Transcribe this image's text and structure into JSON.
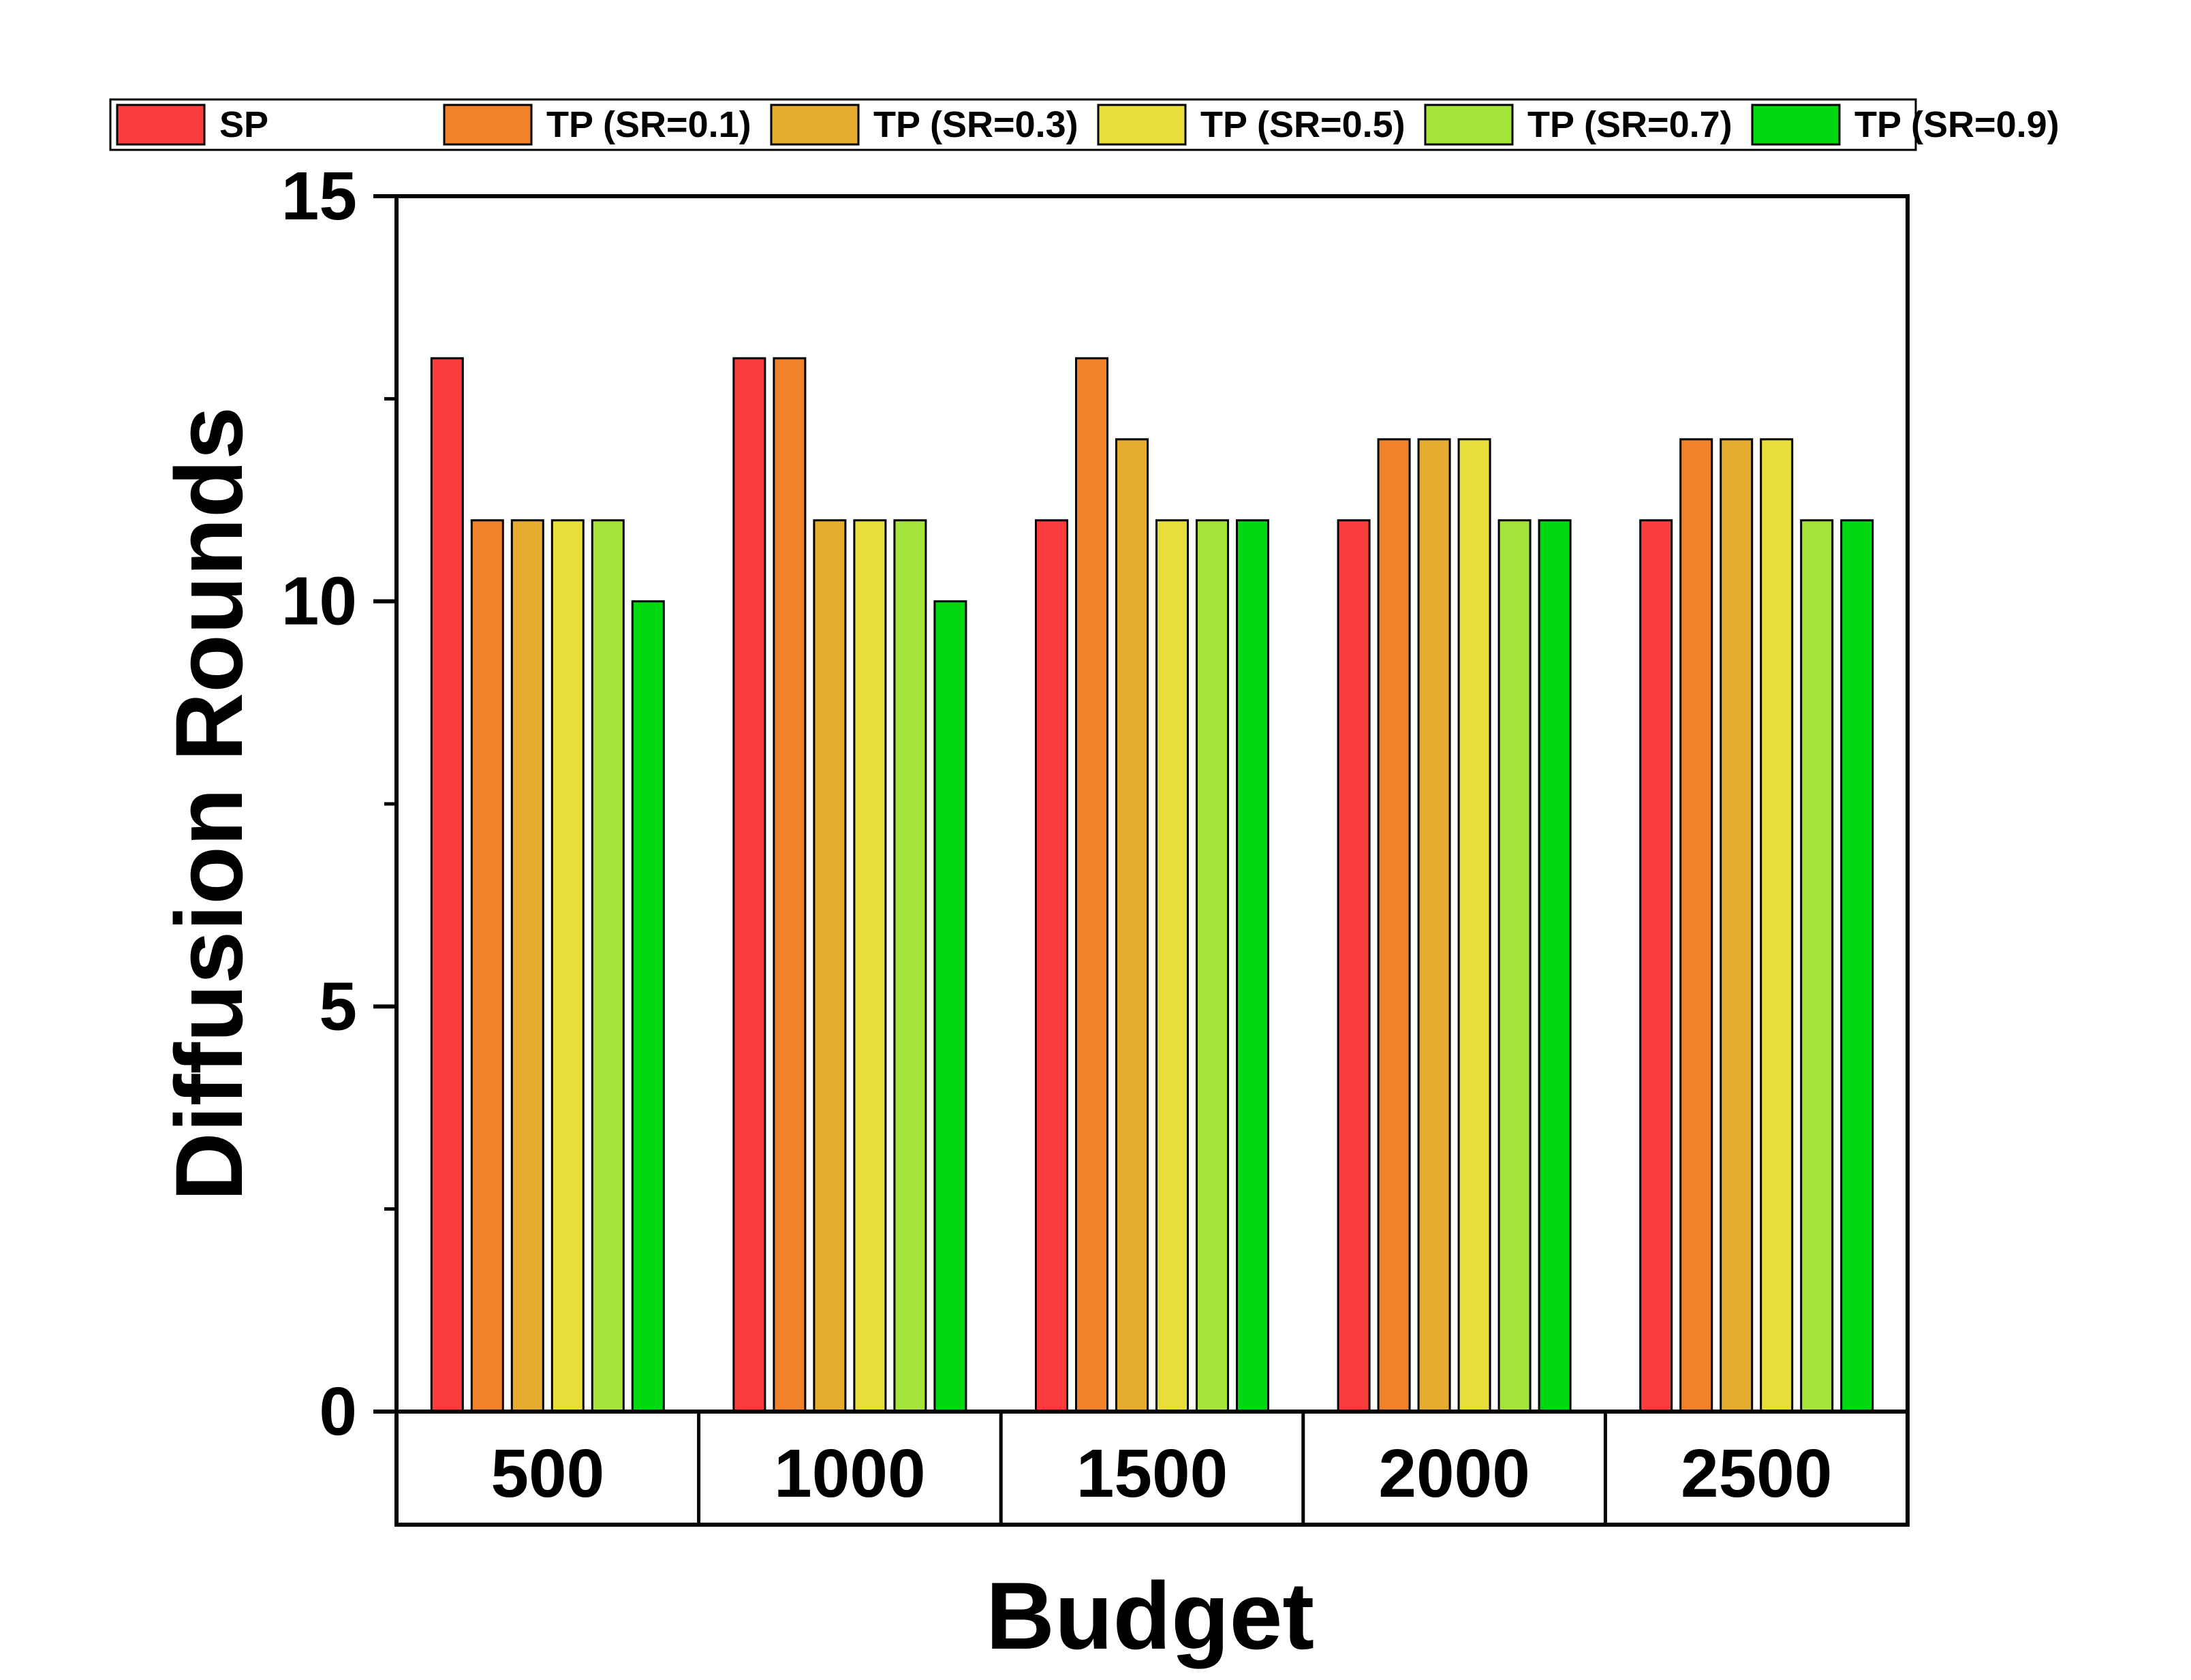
{
  "chart_data": {
    "type": "bar",
    "title": "",
    "xlabel": "Budget",
    "ylabel": "Diffusion Rounds",
    "categories": [
      "500",
      "1000",
      "1500",
      "2000",
      "2500"
    ],
    "ylim": [
      0,
      15
    ],
    "yticks": [
      "0",
      "5",
      "10",
      "15"
    ],
    "legend_position": "top",
    "series": [
      {
        "name": "SP",
        "color": "#fb3d3d",
        "values": [
          13,
          13,
          11,
          11,
          11
        ]
      },
      {
        "name": "TP (SR=0.1)",
        "color": "#f0822b",
        "values": [
          11,
          13,
          13,
          12,
          12
        ]
      },
      {
        "name": "TP (SR=0.3)",
        "color": "#e6ac30",
        "values": [
          11,
          11,
          12,
          12,
          12
        ]
      },
      {
        "name": "TP (SR=0.5)",
        "color": "#e8dd3a",
        "values": [
          11,
          11,
          11,
          12,
          12
        ]
      },
      {
        "name": "TP (SR=0.7)",
        "color": "#a5e43a",
        "values": [
          11,
          11,
          11,
          11,
          11
        ]
      },
      {
        "name": "TP (SR=0.9)",
        "color": "#00d811",
        "values": [
          10,
          10,
          11,
          11,
          11
        ]
      }
    ]
  }
}
